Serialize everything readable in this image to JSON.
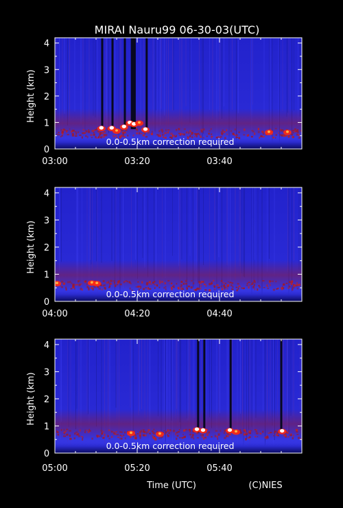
{
  "title": "MIRAI Nauru99 06-30-03(UTC)",
  "footer": {
    "xlabel": "Time (UTC)",
    "credit": "(C)NIES"
  },
  "colors": {
    "background": "#000000",
    "field_base": "#2a2ad8",
    "low_echo": "#9a1a30",
    "strong_echo": "#ff2a10",
    "saturated": "#ffffff",
    "text": "#ffffff"
  },
  "chart_data": [
    {
      "type": "heatmap",
      "ylabel": "Height (km)",
      "yticks": [
        0,
        1,
        2,
        3,
        4
      ],
      "ylim": [
        0,
        4.2
      ],
      "xticks": [
        "03:00",
        "03:20",
        "03:40"
      ],
      "xlim_minutes": [
        0,
        60
      ],
      "annotation": "0.0-0.5km correction required",
      "cloud_layer_km": 0.62,
      "dropouts_min": [
        11.5,
        14.0,
        17.0,
        18.7,
        19.0,
        19.4,
        22.3
      ],
      "hot_spots": [
        {
          "t": 11.3,
          "h": 0.8,
          "level": "saturated"
        },
        {
          "t": 13.8,
          "h": 0.8,
          "level": "saturated"
        },
        {
          "t": 16.8,
          "h": 0.85,
          "level": "saturated"
        },
        {
          "t": 18.2,
          "h": 1.0,
          "level": "saturated"
        },
        {
          "t": 19.2,
          "h": 0.95,
          "level": "saturated"
        },
        {
          "t": 20.5,
          "h": 1.0,
          "level": "strong"
        },
        {
          "t": 22.0,
          "h": 0.75,
          "level": "saturated"
        },
        {
          "t": 15.0,
          "h": 0.7,
          "level": "strong"
        },
        {
          "t": 52.0,
          "h": 0.65,
          "level": "strong"
        },
        {
          "t": 56.5,
          "h": 0.65,
          "level": "strong"
        }
      ]
    },
    {
      "type": "heatmap",
      "ylabel": "Height (km)",
      "yticks": [
        0,
        1,
        2,
        3,
        4
      ],
      "ylim": [
        0,
        4.2
      ],
      "xticks": [
        "04:00",
        "04:20",
        "04:40"
      ],
      "xlim_minutes": [
        0,
        60
      ],
      "annotation": "0.0-0.5km correction required",
      "cloud_layer_km": 0.62,
      "dropouts_min": [],
      "hot_spots": [
        {
          "t": 0.5,
          "h": 0.68,
          "level": "strong"
        },
        {
          "t": 9.0,
          "h": 0.7,
          "level": "strong"
        },
        {
          "t": 10.2,
          "h": 0.68,
          "level": "strong"
        }
      ]
    },
    {
      "type": "heatmap",
      "ylabel": "Height (km)",
      "yticks": [
        0,
        1,
        2,
        3,
        4
      ],
      "ylim": [
        0,
        4.2
      ],
      "xticks": [
        "05:00",
        "05:20",
        "05:40"
      ],
      "xlim_minutes": [
        0,
        60
      ],
      "annotation": "0.0-0.5km correction required",
      "cloud_layer_km": 0.72,
      "dropouts_min": [
        34.8,
        36.3,
        42.7,
        55.0
      ],
      "hot_spots": [
        {
          "t": 34.5,
          "h": 0.88,
          "level": "saturated"
        },
        {
          "t": 36.0,
          "h": 0.85,
          "level": "saturated"
        },
        {
          "t": 42.5,
          "h": 0.85,
          "level": "saturated"
        },
        {
          "t": 55.2,
          "h": 0.82,
          "level": "saturated"
        },
        {
          "t": 18.5,
          "h": 0.75,
          "level": "strong"
        },
        {
          "t": 25.5,
          "h": 0.72,
          "level": "strong"
        },
        {
          "t": 44.0,
          "h": 0.8,
          "level": "strong"
        }
      ]
    }
  ]
}
